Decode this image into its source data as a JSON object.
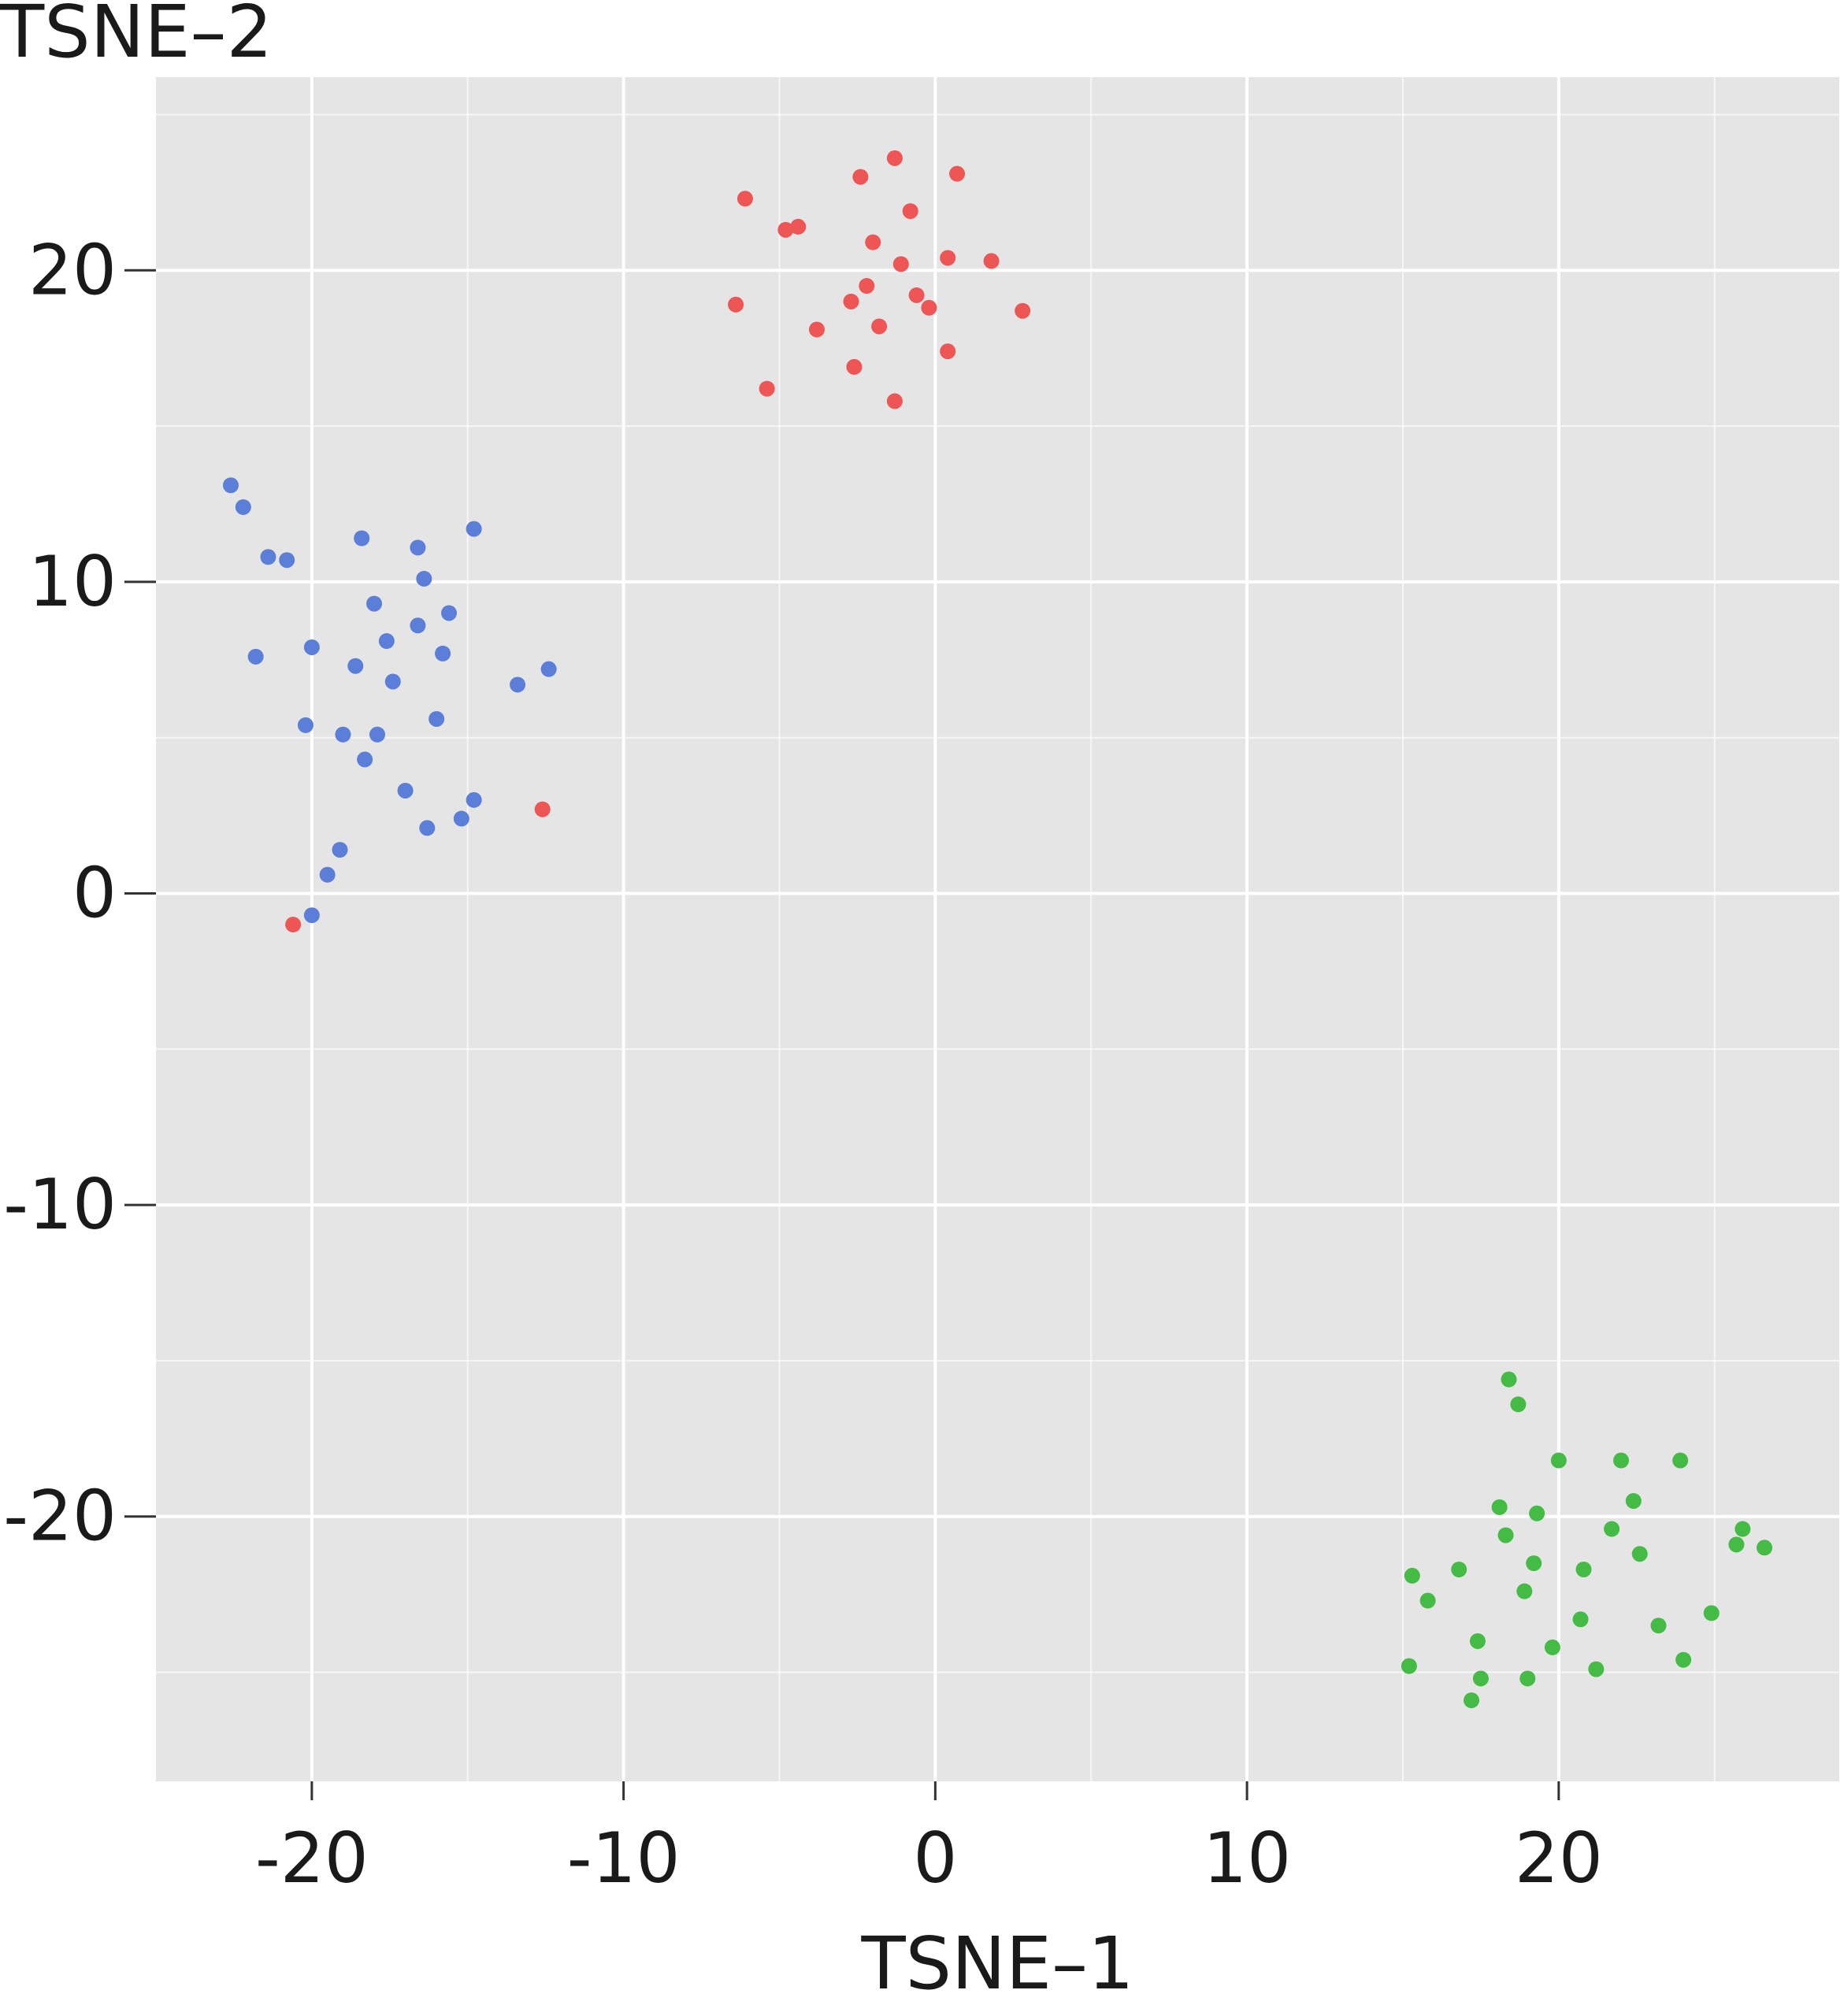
{
  "chart_data": {
    "type": "scatter",
    "xlabel": "TSNE–1",
    "ylabel": "TSNE–2",
    "xlim": [
      -25,
      29
    ],
    "ylim": [
      -28.5,
      26.2
    ],
    "x_ticks": [
      -20,
      -10,
      0,
      10,
      20
    ],
    "y_ticks": [
      20,
      10,
      0,
      -10,
      -20
    ],
    "x_tick_labels": [
      "-20",
      "-10",
      "0",
      "10",
      "20"
    ],
    "y_tick_labels": [
      "20",
      "10",
      "0",
      "-10",
      "-20"
    ],
    "grid": true,
    "legend": "none",
    "colors": {
      "panel": "#e5e5e5",
      "grid": "#ffffff",
      "text": "#1a1a1a"
    },
    "series": [
      {
        "color": "#ee5555",
        "points": [
          [
            -1.3,
            23.6
          ],
          [
            0.7,
            23.1
          ],
          [
            -2.4,
            23.0
          ],
          [
            -6.1,
            22.3
          ],
          [
            -0.8,
            21.9
          ],
          [
            -4.8,
            21.3
          ],
          [
            -4.4,
            21.4
          ],
          [
            -2.0,
            20.9
          ],
          [
            0.4,
            20.4
          ],
          [
            1.8,
            20.3
          ],
          [
            -1.1,
            20.2
          ],
          [
            -2.2,
            19.5
          ],
          [
            -0.6,
            19.2
          ],
          [
            -2.7,
            19.0
          ],
          [
            -0.2,
            18.8
          ],
          [
            -6.4,
            18.9
          ],
          [
            2.8,
            18.7
          ],
          [
            -3.8,
            18.1
          ],
          [
            -1.8,
            18.2
          ],
          [
            0.4,
            17.4
          ],
          [
            -2.6,
            16.9
          ],
          [
            -5.4,
            16.2
          ],
          [
            -1.3,
            15.8
          ],
          [
            -12.6,
            2.7
          ],
          [
            -20.6,
            -1.0
          ]
        ]
      },
      {
        "color": "#5b7fd8",
        "points": [
          [
            -22.6,
            13.1
          ],
          [
            -22.2,
            12.4
          ],
          [
            -14.8,
            11.7
          ],
          [
            -18.4,
            11.4
          ],
          [
            -16.6,
            11.1
          ],
          [
            -21.4,
            10.8
          ],
          [
            -20.8,
            10.7
          ],
          [
            -16.4,
            10.1
          ],
          [
            -18.0,
            9.3
          ],
          [
            -15.6,
            9.0
          ],
          [
            -16.6,
            8.6
          ],
          [
            -17.6,
            8.1
          ],
          [
            -20.0,
            7.9
          ],
          [
            -21.8,
            7.6
          ],
          [
            -15.8,
            7.7
          ],
          [
            -18.6,
            7.3
          ],
          [
            -12.4,
            7.2
          ],
          [
            -17.4,
            6.8
          ],
          [
            -13.4,
            6.7
          ],
          [
            -16.0,
            5.6
          ],
          [
            -20.2,
            5.4
          ],
          [
            -19.0,
            5.1
          ],
          [
            -17.9,
            5.1
          ],
          [
            -18.3,
            4.3
          ],
          [
            -17.0,
            3.3
          ],
          [
            -14.8,
            3.0
          ],
          [
            -15.2,
            2.4
          ],
          [
            -16.3,
            2.1
          ],
          [
            -19.1,
            1.4
          ],
          [
            -19.5,
            0.6
          ],
          [
            -20.0,
            -0.7
          ]
        ]
      },
      {
        "color": "#44bb44",
        "points": [
          [
            18.4,
            -15.6
          ],
          [
            18.7,
            -16.4
          ],
          [
            20.0,
            -18.2
          ],
          [
            22.0,
            -18.2
          ],
          [
            23.9,
            -18.2
          ],
          [
            22.4,
            -19.5
          ],
          [
            18.1,
            -19.7
          ],
          [
            19.3,
            -19.9
          ],
          [
            21.7,
            -20.4
          ],
          [
            25.9,
            -20.4
          ],
          [
            18.3,
            -20.6
          ],
          [
            25.7,
            -20.9
          ],
          [
            26.6,
            -21.0
          ],
          [
            22.6,
            -21.2
          ],
          [
            19.2,
            -21.5
          ],
          [
            20.8,
            -21.7
          ],
          [
            16.8,
            -21.7
          ],
          [
            15.3,
            -21.9
          ],
          [
            18.9,
            -22.4
          ],
          [
            15.8,
            -22.7
          ],
          [
            24.9,
            -23.1
          ],
          [
            20.7,
            -23.3
          ],
          [
            23.2,
            -23.5
          ],
          [
            17.4,
            -24.0
          ],
          [
            19.8,
            -24.2
          ],
          [
            24.0,
            -24.6
          ],
          [
            15.2,
            -24.8
          ],
          [
            21.2,
            -24.9
          ],
          [
            17.5,
            -25.2
          ],
          [
            19.0,
            -25.2
          ],
          [
            17.2,
            -25.9
          ]
        ]
      }
    ]
  }
}
